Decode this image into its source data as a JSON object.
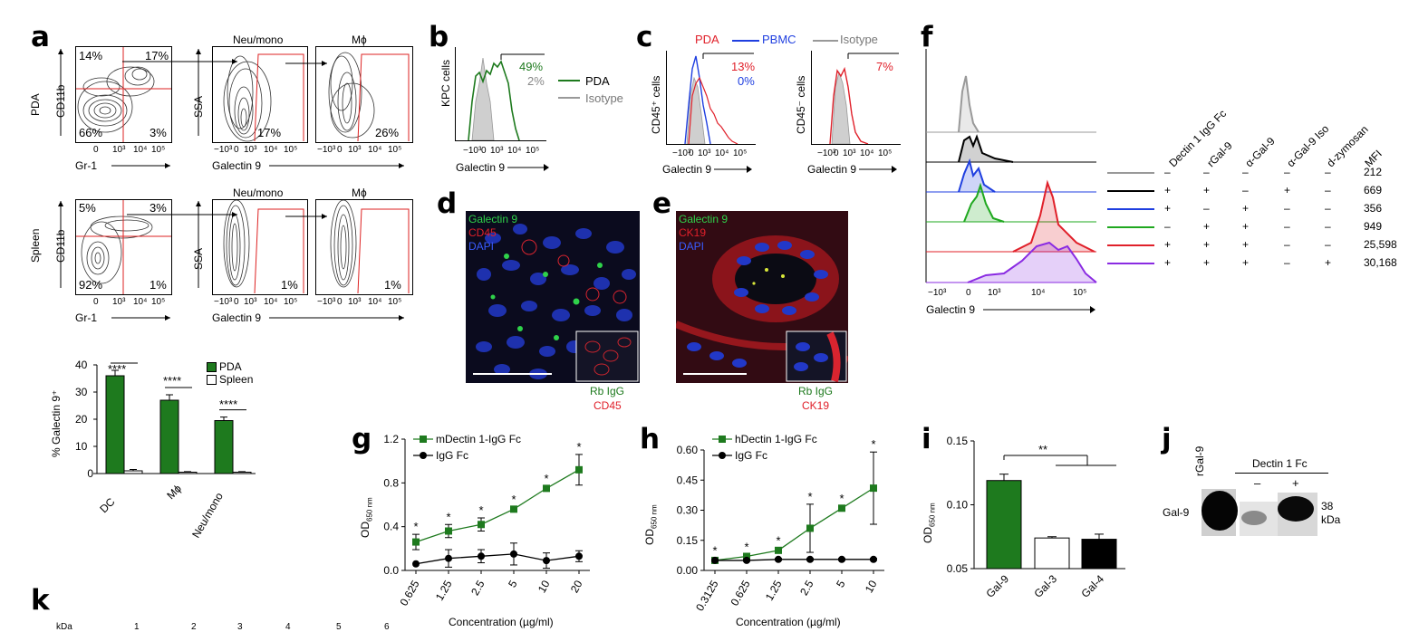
{
  "panel_labels": {
    "a": "a",
    "b": "b",
    "c": "c",
    "d": "d",
    "e": "e",
    "f": "f",
    "g": "g",
    "h": "h",
    "i": "i",
    "j": "j",
    "k": "k"
  },
  "panel_a": {
    "pda_row_label": "PDA",
    "spleen_row_label": "Spleen",
    "cd11b_label": "CD11b",
    "gr1_label": "Gr-1",
    "ssa_label": "SSA",
    "galectin9_label": "Galectin 9",
    "neu_mono_title": "Neu/mono",
    "mphi_title": "Mϕ",
    "pda_quadrants": {
      "tl": "14%",
      "tr": "17%",
      "bl": "66%",
      "br": "3%"
    },
    "pda_neu_gate": "17%",
    "pda_mphi_gate": "26%",
    "spleen_quadrants": {
      "tl": "5%",
      "tr": "3%",
      "bl": "92%",
      "br": "1%"
    },
    "spleen_neu_gate": "1%",
    "spleen_mphi_gate": "1%",
    "ticks_gr1": [
      "0",
      "10³",
      "10⁴",
      "10⁵"
    ],
    "ticks_gal": [
      "−10³",
      "0",
      "10³",
      "10⁴",
      "10⁵"
    ]
  },
  "panel_a_bar": {
    "ylabel": "% Galectin 9⁺",
    "yticks": [
      "0",
      "10",
      "20",
      "30",
      "40"
    ],
    "legend": [
      "PDA",
      "Spleen"
    ],
    "significance": [
      "****",
      "****",
      "****"
    ],
    "colors": {
      "pda": "#1e7a1e",
      "spleen": "#ffffff"
    }
  },
  "panel_b": {
    "ylabel": "KPC cells",
    "xlabel": "Galectin 9",
    "pda_percent": "49%",
    "isotype_percent": "2%",
    "legend": [
      "PDA",
      "Isotype"
    ],
    "ticks": [
      "−10³",
      "0",
      "10³",
      "10⁴",
      "10⁵"
    ]
  },
  "panel_c": {
    "legend": [
      "PDA",
      "PBMC",
      "Isotype"
    ],
    "ylabel_left": "CD45⁺ cells",
    "ylabel_right": "CD45⁻ cells",
    "xlabel": "Galectin 9",
    "left_pda_percent": "13%",
    "left_pbmc_percent": "0%",
    "right_pda_percent": "7%",
    "ticks": [
      "−10³",
      "0",
      "10³",
      "10⁴",
      "10⁵"
    ]
  },
  "panel_d": {
    "stains": [
      "Galectin 9",
      "CD45",
      "DAPI"
    ],
    "inset_label_1": "Rb IgG",
    "inset_label_2": "CD45"
  },
  "panel_e": {
    "stains": [
      "Galectin 9",
      "CK19",
      "DAPI"
    ],
    "inset_label_1": "Rb IgG",
    "inset_label_2": "CK19"
  },
  "panel_f": {
    "xlabel": "Galectin 9",
    "ticks": [
      "−10³",
      "0",
      "10³",
      "10⁴",
      "10⁵"
    ],
    "columns": [
      "Dectin 1 IgG Fc",
      "rGal-9",
      "α-Gal-9",
      "α-Gal-9 Iso",
      "d-zymosan",
      "MFI"
    ],
    "rows": [
      {
        "color": "#999999",
        "values": [
          "–",
          "–",
          "–",
          "–",
          "–"
        ],
        "mfi": "212"
      },
      {
        "color": "#000000",
        "values": [
          "+",
          "+",
          "–",
          "+",
          "–"
        ],
        "mfi": "669"
      },
      {
        "color": "#1f3fe0",
        "values": [
          "+",
          "–",
          "+",
          "–",
          "–"
        ],
        "mfi": "356"
      },
      {
        "color": "#1fa81f",
        "values": [
          "–",
          "+",
          "+",
          "–",
          "–"
        ],
        "mfi": "949"
      },
      {
        "color": "#e0202a",
        "values": [
          "+",
          "+",
          "+",
          "–",
          "–"
        ],
        "mfi": "25,598"
      },
      {
        "color": "#8a2be2",
        "values": [
          "+",
          "+",
          "+",
          "–",
          "+"
        ],
        "mfi": "30,168"
      }
    ]
  },
  "chart_data": [
    {
      "id": "panel-a-bar",
      "type": "bar",
      "categories": [
        "DC",
        "Mϕ",
        "Neu/mono"
      ],
      "series": [
        {
          "name": "PDA",
          "values": [
            36,
            27,
            19.5
          ],
          "errors": [
            2,
            2,
            1.3
          ]
        },
        {
          "name": "Spleen",
          "values": [
            1,
            0.5,
            0.5
          ],
          "errors": [
            0.5,
            0.2,
            0.2
          ]
        }
      ],
      "ylabel": "% Galectin 9⁺",
      "ylim": [
        0,
        40
      ]
    },
    {
      "id": "panel-g",
      "type": "line",
      "title": "",
      "x": [
        "0.625",
        "1.25",
        "2.5",
        "5",
        "10",
        "20"
      ],
      "series": [
        {
          "name": "mDectin 1-IgG Fc",
          "values": [
            0.26,
            0.36,
            0.42,
            0.56,
            0.75,
            0.92
          ],
          "errors": [
            0.07,
            0.06,
            0.06,
            0.02,
            0.02,
            0.14
          ],
          "color": "#1e7a1e"
        },
        {
          "name": "IgG Fc",
          "values": [
            0.06,
            0.11,
            0.13,
            0.15,
            0.09,
            0.13
          ],
          "errors": [
            0.0,
            0.08,
            0.06,
            0.1,
            0.07,
            0.05
          ],
          "color": "#000000"
        }
      ],
      "significance": [
        "*",
        "*",
        "*",
        "*",
        "*",
        "*"
      ],
      "xlabel": "Concentration (µg/ml)",
      "ylabel": "OD650 nm",
      "yticks": [
        "0.0",
        "0.4",
        "0.8",
        "1.2"
      ],
      "ylim": [
        0,
        1.2
      ]
    },
    {
      "id": "panel-h",
      "type": "line",
      "x": [
        "0.3125",
        "0.625",
        "1.25",
        "2.5",
        "5",
        "10"
      ],
      "series": [
        {
          "name": "hDectin 1-IgG Fc",
          "values": [
            0.05,
            0.07,
            0.1,
            0.21,
            0.31,
            0.41
          ],
          "errors": [
            0.01,
            0.01,
            0.01,
            0.12,
            0.01,
            0.18
          ],
          "color": "#1e7a1e"
        },
        {
          "name": "IgG Fc",
          "values": [
            0.05,
            0.05,
            0.055,
            0.055,
            0.055,
            0.055
          ],
          "errors": [
            0.005,
            0.005,
            0.005,
            0.005,
            0.005,
            0.005
          ],
          "color": "#000000"
        }
      ],
      "significance": [
        "*",
        "*",
        "*",
        "*",
        "*",
        "*"
      ],
      "xlabel": "Concentration (µg/ml)",
      "ylabel": "OD650 nm",
      "yticks": [
        "0.00",
        "0.15",
        "0.30",
        "0.45",
        "0.60"
      ],
      "ylim": [
        0,
        0.6
      ]
    },
    {
      "id": "panel-i",
      "type": "bar",
      "categories": [
        "Gal-9",
        "Gal-3",
        "Gal-4"
      ],
      "values": [
        0.119,
        0.074,
        0.073
      ],
      "errors": [
        0.005,
        0.001,
        0.004
      ],
      "colors": [
        "#1e7a1e",
        "#ffffff",
        "#000000"
      ],
      "significance": "**",
      "ylabel": "OD650 nm",
      "yticks": [
        "0.05",
        "0.10",
        "0.15"
      ],
      "ylim": [
        0.05,
        0.15
      ]
    }
  ],
  "panel_j": {
    "lane_label_rgal9": "rGal-9",
    "group_label": "Dectin 1 Fc",
    "minus": "–",
    "plus": "+",
    "row_label": "Gal-9",
    "mw_value": "38",
    "mw_unit": "kDa"
  },
  "panel_k": {
    "kda_label": "kDa",
    "lane_numbers": [
      "1",
      "2",
      "3",
      "4",
      "5",
      "6"
    ]
  },
  "axis_units": {
    "od_main": "OD",
    "od_sub": "650 nm",
    "concentration": "Concentration (µg/ml)"
  }
}
